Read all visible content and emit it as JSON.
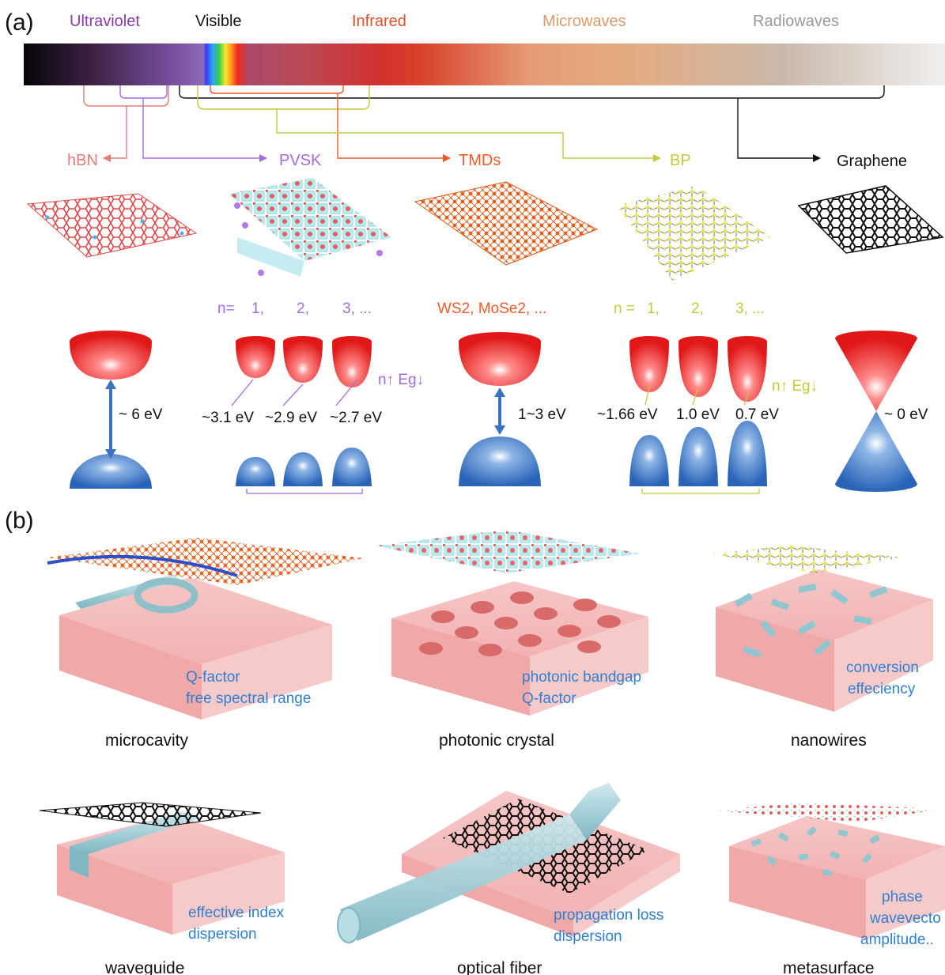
{
  "panel_a": {
    "label": "(a)",
    "spectrum": {
      "ultraviolet": {
        "text": "Ultraviolet",
        "color": "#8a3aa8"
      },
      "visible": {
        "text": "Visible",
        "color": "#111111"
      },
      "infrared": {
        "text": "Infrared",
        "color": "#e0502a"
      },
      "microwaves": {
        "text": "Microwaves",
        "color": "#dc9a6a"
      },
      "radiowaves": {
        "text": "Radiowaves",
        "color": "#999999"
      }
    },
    "materials": {
      "hbn": {
        "text": "hBN",
        "color": "#e87a78"
      },
      "pvsk": {
        "text": "PVSK",
        "color": "#a36be0"
      },
      "tmds": {
        "text": "TMDs",
        "color": "#ef5a2a"
      },
      "bp": {
        "text": "BP",
        "color": "#c6c93a"
      },
      "graphene": {
        "text": "Graphene",
        "color": "#111111"
      }
    },
    "pvsk_n": {
      "prefix": "n=",
      "n1": "1,",
      "n2": "2,",
      "n3": "3, ..."
    },
    "tmds_examples": "WS2, MoSe2, ...",
    "bp_n": {
      "prefix": "n =",
      "n1": "1,",
      "n2": "2,",
      "n3": "3, ..."
    },
    "bandgaps": {
      "hbn": "~ 6 eV",
      "pvsk": [
        "~3.1 eV",
        "~2.9 eV",
        "~2.7 eV"
      ],
      "tmds": "1~3 eV",
      "bp": [
        "~1.66 eV",
        "1.0 eV",
        "0.7 eV"
      ],
      "graphene": "~ 0 eV"
    },
    "trend_label": "n↑ Eg↓"
  },
  "panel_b": {
    "label": "(b)",
    "devices": [
      {
        "name": "microcavity",
        "props": [
          "Q-factor",
          "free spectral range"
        ]
      },
      {
        "name": "photonic crystal",
        "props": [
          "photonic bandgap",
          "Q-factor"
        ]
      },
      {
        "name": "nanowires",
        "props": [
          "conversion",
          "effeciency"
        ]
      },
      {
        "name": "waveguide",
        "props": [
          "effective index",
          "dispersion"
        ]
      },
      {
        "name": "optical fiber",
        "props": [
          "propagation loss",
          "dispersion"
        ]
      },
      {
        "name": "metasurface",
        "props": [
          "phase",
          "wavevecto",
          "amplitude.."
        ]
      }
    ],
    "prop_color": "#2f7fd0"
  }
}
